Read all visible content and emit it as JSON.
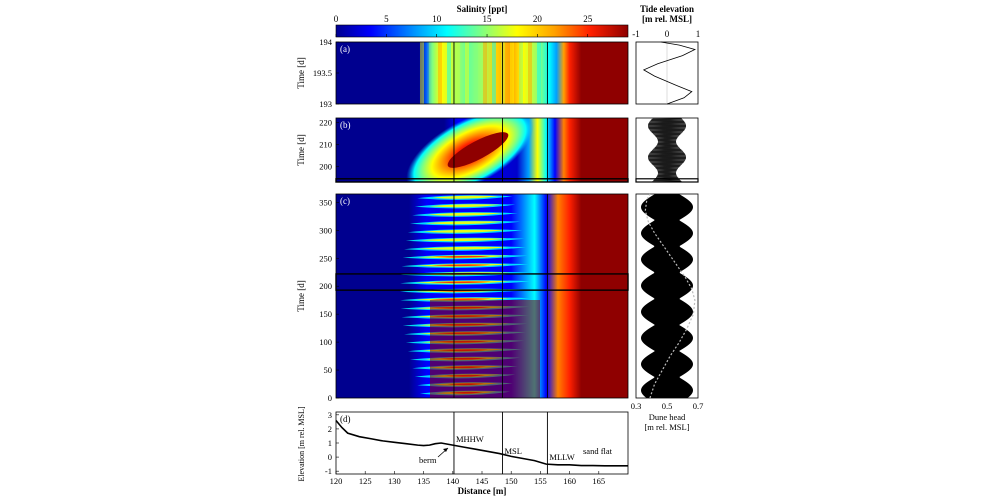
{
  "colorbar": {
    "title": "Salinity [ppt]",
    "ticks": [
      0,
      5,
      10,
      15,
      20,
      25
    ],
    "min": 0,
    "max": 29,
    "stops": [
      "#00008f",
      "#0000ff",
      "#00a0ff",
      "#00ffff",
      "#80ff80",
      "#ffff00",
      "#ffa000",
      "#ff2000",
      "#8f0000"
    ]
  },
  "tide_colorbar": {
    "title_line1": "Tide elevation",
    "title_line2": "[m rel. MSL]",
    "ticks": [
      -1,
      0,
      1
    ]
  },
  "chart_data": [
    {
      "type": "heatmap",
      "panel": "a",
      "panel_label": "(a)",
      "ylabel": "Time [d]",
      "ylim": [
        193,
        194
      ],
      "yticks": [
        "193",
        "193.5",
        "194"
      ],
      "ytick_values": [
        193,
        193.5,
        194
      ],
      "xlim": [
        120,
        170
      ],
      "vertical_lines": [
        140.2,
        148.5,
        156.2
      ],
      "note": "salinity contours; fresh zone landward of ~135 m, saline (>28 ppt) seaward of ~157 m"
    },
    {
      "type": "heatmap",
      "panel": "b",
      "panel_label": "(b)",
      "ylabel": "Time [d]",
      "ylim": [
        193,
        222
      ],
      "yticks": [
        "200",
        "210",
        "220"
      ],
      "ytick_values": [
        200,
        210,
        220
      ],
      "xlim": [
        120,
        170
      ],
      "highlight_range": [
        193,
        194
      ],
      "vertical_lines": [
        140.2,
        148.5,
        156.2
      ]
    },
    {
      "type": "heatmap",
      "panel": "c",
      "panel_label": "(c)",
      "ylabel": "Time [d]",
      "ylim": [
        0,
        365
      ],
      "yticks": [
        "0",
        "50",
        "100",
        "150",
        "200",
        "250",
        "300",
        "350"
      ],
      "ytick_values": [
        0,
        50,
        100,
        150,
        200,
        250,
        300,
        350
      ],
      "xlim": [
        120,
        170
      ],
      "highlight_range": [
        193,
        222
      ],
      "vertical_lines": [
        140.2,
        148.5,
        156.2
      ]
    },
    {
      "type": "line",
      "panel": "tide-a",
      "xlim": [
        -1,
        1
      ],
      "ylim": [
        193,
        194
      ],
      "x": [
        0,
        0.55,
        0.8,
        0.3,
        -0.4,
        -0.75,
        -0.3,
        0.5,
        0.9,
        0.4,
        -0.2
      ],
      "y": [
        193,
        193.1,
        193.2,
        193.3,
        193.45,
        193.55,
        193.65,
        193.78,
        193.88,
        193.95,
        194
      ]
    },
    {
      "type": "line",
      "panel": "dune-head",
      "xlabel_line1": "Dune head",
      "xlabel_line2": "[m rel. MSL]",
      "xlim": [
        0.3,
        0.7
      ],
      "xticks": [
        "0.3",
        "0.5",
        "0.7"
      ],
      "xtick_values": [
        0.3,
        0.5,
        0.7
      ],
      "ylim": [
        0,
        365
      ],
      "dune_head_x": [
        0.39,
        0.42,
        0.47,
        0.52,
        0.58,
        0.63,
        0.67,
        0.68,
        0.66,
        0.62,
        0.57,
        0.52,
        0.47,
        0.42,
        0.38,
        0.36,
        0.37,
        0.39
      ],
      "dune_head_y": [
        0,
        25,
        50,
        75,
        100,
        125,
        150,
        175,
        195,
        215,
        235,
        255,
        275,
        295,
        315,
        335,
        355,
        365
      ]
    },
    {
      "type": "line",
      "panel": "d",
      "panel_label": "(d)",
      "xlabel": "Distance [m]",
      "ylabel": "Elevation [m rel. MSL]",
      "xlim": [
        120,
        170
      ],
      "ylim": [
        -1.2,
        3.2
      ],
      "xticks": [
        "120",
        "125",
        "130",
        "135",
        "140",
        "145",
        "150",
        "155",
        "160",
        "165"
      ],
      "xtick_values": [
        120,
        125,
        130,
        135,
        140,
        145,
        150,
        155,
        160,
        165
      ],
      "yticks": [
        "-1",
        "0",
        "1",
        "2",
        "3"
      ],
      "ytick_values": [
        -1,
        0,
        1,
        2,
        3
      ],
      "x": [
        120,
        121,
        122,
        124,
        126,
        128,
        130,
        132,
        134,
        135,
        136,
        137,
        138,
        140,
        142,
        144,
        146,
        148,
        150,
        152,
        154,
        156,
        158,
        160,
        162,
        164,
        166,
        168,
        170
      ],
      "y": [
        2.6,
        2.1,
        1.7,
        1.45,
        1.3,
        1.15,
        1.05,
        0.95,
        0.85,
        0.82,
        0.85,
        0.95,
        1.0,
        0.85,
        0.7,
        0.55,
        0.4,
        0.25,
        0.05,
        -0.1,
        -0.25,
        -0.5,
        -0.55,
        -0.55,
        -0.6,
        -0.6,
        -0.62,
        -0.62,
        -0.62
      ],
      "vertical_lines": [
        {
          "x": 140.2,
          "label": "MHHW"
        },
        {
          "x": 148.5,
          "label": "MSL"
        },
        {
          "x": 156.2,
          "label": "MLLW"
        }
      ],
      "annotations": {
        "berm": "berm",
        "sand_flat": "sand flat",
        "berm_x": 140.2
      }
    }
  ]
}
